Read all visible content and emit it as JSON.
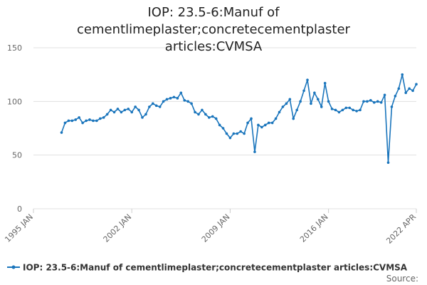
{
  "chart_data": {
    "type": "line",
    "title": "IOP: 23.5-6:Manuf of cementlimeplaster;concretecementplaster articles:CVMSA",
    "source_label": "Source:",
    "x": [
      "1997-01",
      "1997-04",
      "1997-07",
      "1997-10",
      "1998-01",
      "1998-04",
      "1998-07",
      "1998-10",
      "1999-01",
      "1999-04",
      "1999-07",
      "1999-10",
      "2000-01",
      "2000-04",
      "2000-07",
      "2000-10",
      "2001-01",
      "2001-04",
      "2001-07",
      "2001-10",
      "2002-01",
      "2002-04",
      "2002-07",
      "2002-10",
      "2003-01",
      "2003-04",
      "2003-07",
      "2003-10",
      "2004-01",
      "2004-04",
      "2004-07",
      "2004-10",
      "2005-01",
      "2005-04",
      "2005-07",
      "2005-10",
      "2006-01",
      "2006-04",
      "2006-07",
      "2006-10",
      "2007-01",
      "2007-04",
      "2007-07",
      "2007-10",
      "2008-01",
      "2008-04",
      "2008-07",
      "2008-10",
      "2009-01",
      "2009-04",
      "2009-07",
      "2009-10",
      "2010-01",
      "2010-04",
      "2010-07",
      "2010-10",
      "2011-01",
      "2011-04",
      "2011-07",
      "2011-10",
      "2012-01",
      "2012-04",
      "2012-07",
      "2012-10",
      "2013-01",
      "2013-04",
      "2013-07",
      "2013-10",
      "2014-01",
      "2014-04",
      "2014-07",
      "2014-10",
      "2015-01",
      "2015-04",
      "2015-07",
      "2015-10",
      "2016-01",
      "2016-04",
      "2016-07",
      "2016-10",
      "2017-01",
      "2017-04",
      "2017-07",
      "2017-10",
      "2018-01",
      "2018-04",
      "2018-07",
      "2018-10",
      "2019-01",
      "2019-04",
      "2019-07",
      "2019-10",
      "2020-01",
      "2020-04",
      "2020-07",
      "2020-10",
      "2021-01",
      "2021-04",
      "2021-07",
      "2021-10",
      "2022-01",
      "2022-04"
    ],
    "series": [
      {
        "name": "IOP: 23.5-6:Manuf of cementlimeplaster;concretecementplaster articles:CVMSA",
        "color": "#1a75bc",
        "values": [
          71,
          80,
          82,
          82,
          83,
          85,
          80,
          82,
          83,
          82,
          82,
          84,
          85,
          88,
          92,
          90,
          93,
          90,
          92,
          93,
          90,
          95,
          92,
          85,
          88,
          95,
          98,
          96,
          95,
          100,
          102,
          103,
          104,
          103,
          108,
          101,
          100,
          98,
          90,
          88,
          92,
          88,
          85,
          86,
          84,
          78,
          75,
          70,
          66,
          70,
          70,
          72,
          70,
          80,
          84,
          53,
          78,
          76,
          78,
          80,
          80,
          84,
          90,
          95,
          98,
          102,
          84,
          92,
          100,
          110,
          120,
          98,
          108,
          102,
          95,
          117,
          100,
          93,
          92,
          90,
          92,
          94,
          94,
          92,
          91,
          92,
          100,
          100,
          101,
          99,
          100,
          99,
          106,
          43,
          95,
          105,
          112,
          125,
          108,
          112,
          110,
          116
        ]
      }
    ],
    "xlim": [
      "1995-01",
      "2022-04"
    ],
    "xticks": [
      {
        "value": "1995-01",
        "label": "1995 JAN"
      },
      {
        "value": "2002-01",
        "label": "2002 JAN"
      },
      {
        "value": "2009-01",
        "label": "2009 JAN"
      },
      {
        "value": "2016-01",
        "label": "2016 JAN"
      },
      {
        "value": "2022-04",
        "label": "2022 APR"
      }
    ],
    "ylim": [
      0,
      150
    ],
    "yticks": [
      0,
      50,
      100,
      150
    ],
    "grid": true
  }
}
